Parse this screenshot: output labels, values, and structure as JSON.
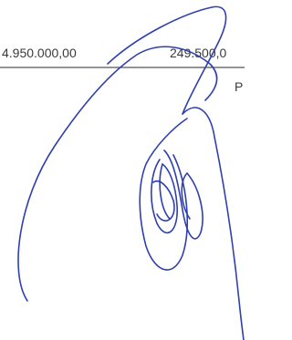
{
  "amounts": {
    "left": "4.950.000,00",
    "right": "249.500,0"
  },
  "below_label": "P"
}
